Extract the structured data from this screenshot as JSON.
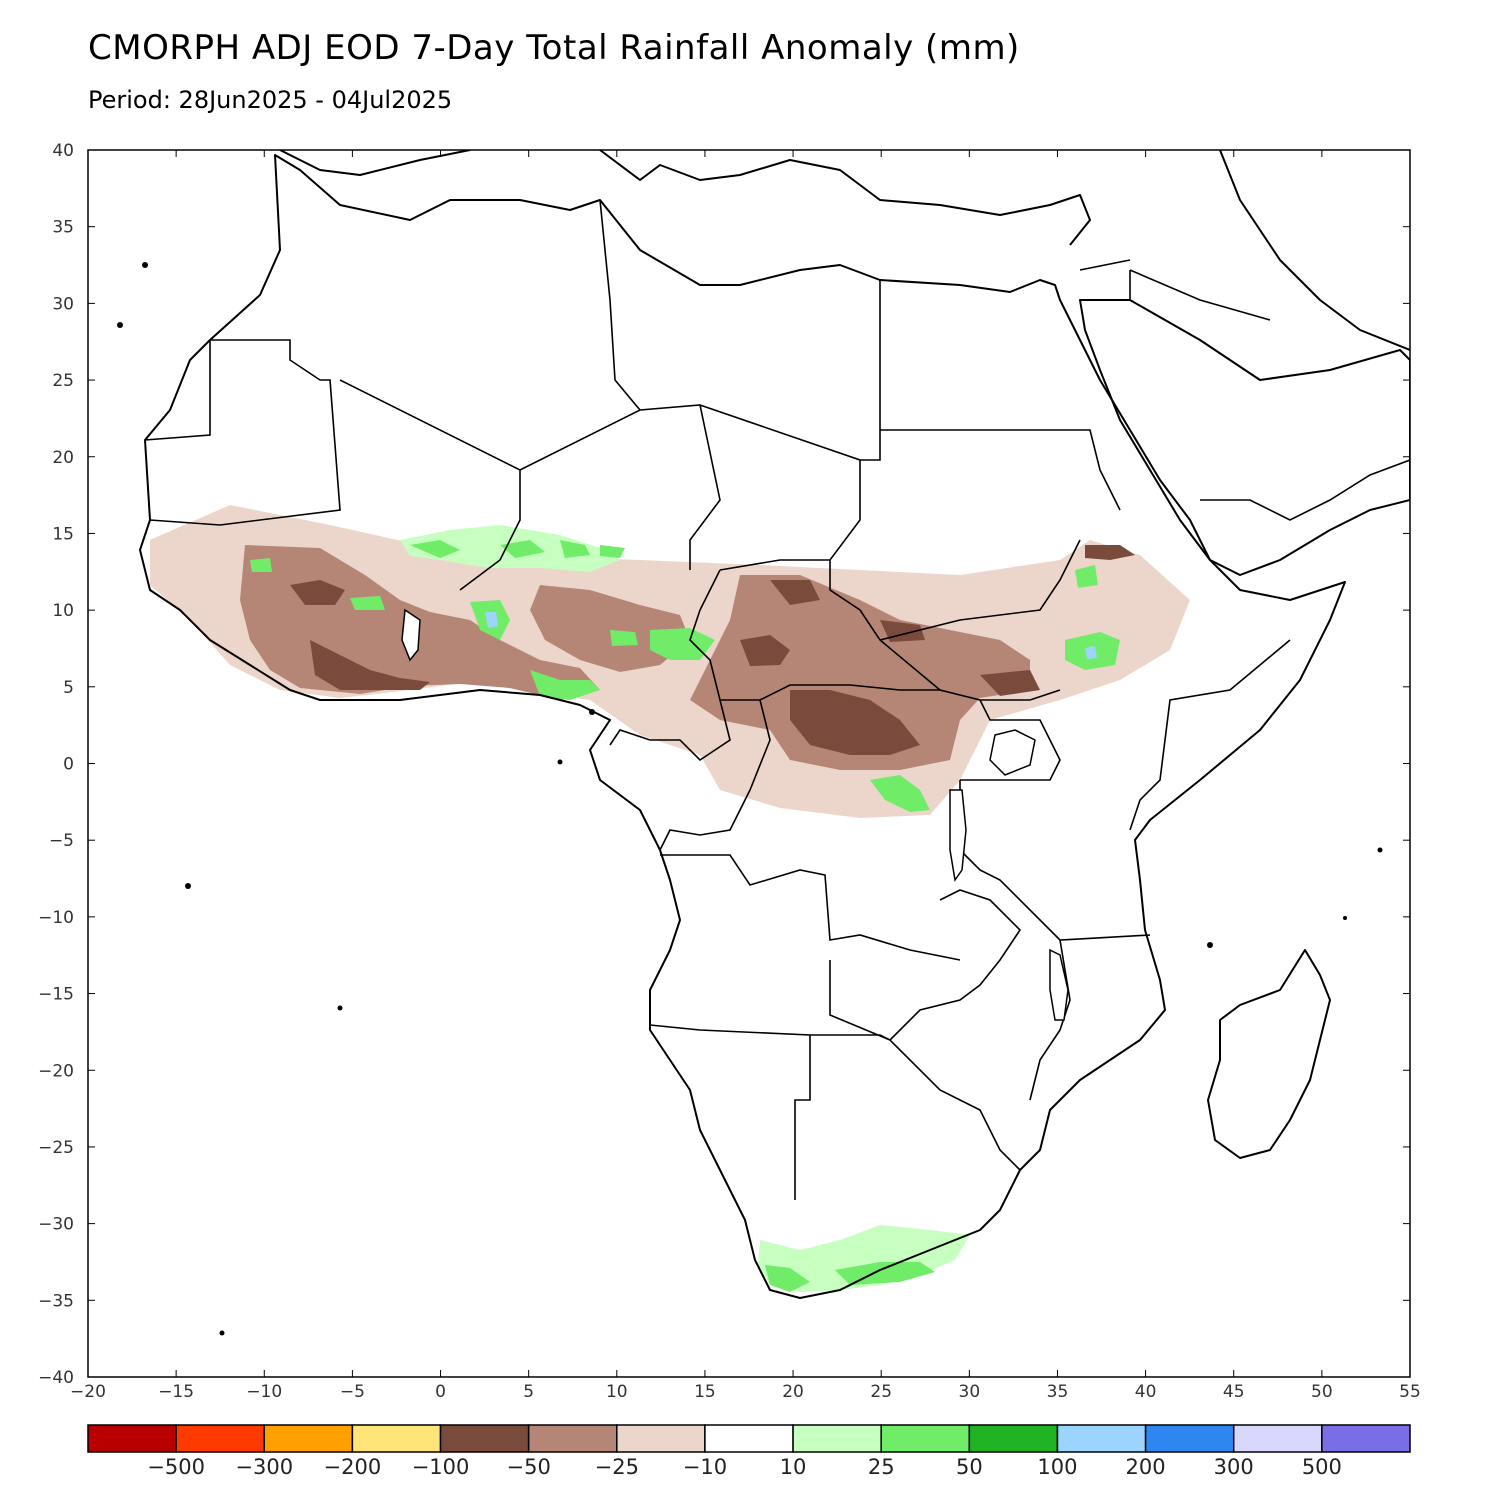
{
  "header": {
    "title": "CMORPH ADJ EOD 7-Day Total Rainfall Anomaly (mm)",
    "period": "Period: 28Jun2025 - 04Jul2025"
  },
  "map": {
    "lon_range": [
      -20,
      55
    ],
    "lat_range": [
      -40,
      40
    ],
    "lon_ticks": [
      -20,
      -15,
      -10,
      -5,
      0,
      5,
      10,
      15,
      20,
      25,
      30,
      35,
      40,
      45,
      50,
      55
    ],
    "lat_ticks": [
      40,
      35,
      30,
      25,
      20,
      15,
      10,
      5,
      0,
      -5,
      -10,
      -15,
      -20,
      -25,
      -30,
      -35,
      -40
    ],
    "lon_tick_labels": [
      "−20",
      "−15",
      "−10",
      "−5",
      "0",
      "5",
      "10",
      "15",
      "20",
      "25",
      "30",
      "35",
      "40",
      "45",
      "50",
      "55"
    ],
    "lat_tick_labels": [
      "40",
      "35",
      "30",
      "25",
      "20",
      "15",
      "10",
      "5",
      "0",
      "−5",
      "−10",
      "−15",
      "−20",
      "−25",
      "−30",
      "−35",
      "−40"
    ]
  },
  "colorbar": {
    "colors": [
      "#b80000",
      "#ff3a00",
      "#ffa000",
      "#ffe477",
      "#7a4a3c",
      "#b58676",
      "#ecd6cc",
      "#ffffff",
      "#c6ffc0",
      "#70ec68",
      "#20b424",
      "#9ad4ff",
      "#2e86f0",
      "#d8d8ff",
      "#7a6ee6"
    ],
    "labels": [
      "−500",
      "−300",
      "−200",
      "−100",
      "−50",
      "−25",
      "−10",
      "10",
      "25",
      "50",
      "100",
      "200",
      "300",
      "500"
    ]
  }
}
